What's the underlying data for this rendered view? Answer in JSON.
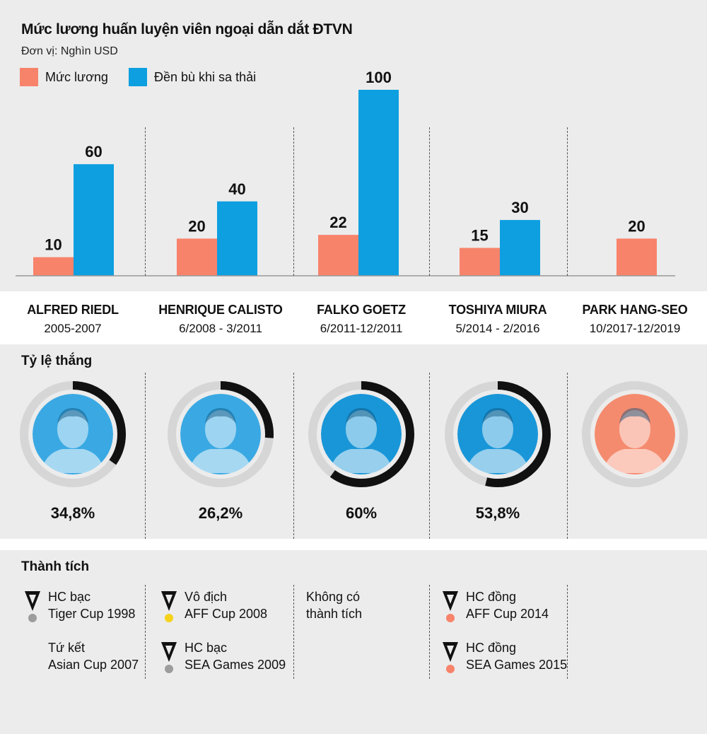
{
  "title": "Mức lương huấn luyện viên ngoại dẫn dắt ĐTVN",
  "unit": "Đơn vị: Nghìn USD",
  "colors": {
    "salary": "#f8836b",
    "compensation": "#0d9fe0",
    "ring_bg": "#d6d6d6",
    "ring_fg": "#111111",
    "gold": "#f6d21b",
    "silver": "#9c9c9c",
    "bronze": "#f8836b"
  },
  "legend": [
    {
      "label": "Mức lương",
      "color": "#f8836b"
    },
    {
      "label": "Đền bù khi sa thải",
      "color": "#0d9fe0"
    }
  ],
  "chart_data": {
    "type": "bar",
    "title": "Mức lương huấn luyện viên ngoại dẫn dắt ĐTVN",
    "subtitle": "Đơn vị: Nghìn USD",
    "categories": [
      "ALFRED RIEDL",
      "HENRIQUE CALISTO",
      "FALKO GOETZ",
      "TOSHIYA MIURA",
      "PARK HANG-SEO"
    ],
    "series": [
      {
        "name": "Mức lương",
        "values": [
          10,
          20,
          22,
          15,
          20
        ]
      },
      {
        "name": "Đền bù khi sa thải",
        "values": [
          60,
          40,
          100,
          30,
          null
        ]
      }
    ],
    "ylim": [
      0,
      100
    ],
    "grid": false,
    "legend_position": "top-left"
  },
  "coaches": [
    {
      "name": "ALFRED RIEDL",
      "period": "2005-2007",
      "win_rate": 34.8,
      "win_label": "34,8%",
      "photo_icon": "coach-photo-icon",
      "photo_tint": "#3aa9e3"
    },
    {
      "name": "HENRIQUE CALISTO",
      "period": "6/2008 - 3/2011",
      "win_rate": 26.2,
      "win_label": "26,2%",
      "photo_icon": "coach-photo-icon",
      "photo_tint": "#3aa9e3"
    },
    {
      "name": "FALKO GOETZ",
      "period": "6/2011-12/2011",
      "win_rate": 60,
      "win_label": "60%",
      "photo_icon": "coach-photo-icon",
      "photo_tint": "#1996d8"
    },
    {
      "name": "TOSHIYA MIURA",
      "period": "5/2014 - 2/2016",
      "win_rate": 53.8,
      "win_label": "53,8%",
      "photo_icon": "coach-photo-icon",
      "photo_tint": "#1996d8"
    },
    {
      "name": "PARK HANG-SEO",
      "period": "10/2017-12/2019",
      "win_rate": null,
      "win_label": "",
      "photo_icon": "coach-photo-icon",
      "photo_tint": "#f58b6e"
    }
  ],
  "win_section_title": "Tỷ lệ thắng",
  "ach_section_title": "Thành tích",
  "achievements": [
    [
      {
        "lines": [
          "HC bạc",
          "Tiger Cup 1998"
        ],
        "medal": "silver"
      },
      {
        "lines": [
          "Tứ kết",
          "Asian Cup 2007"
        ],
        "medal": null
      }
    ],
    [
      {
        "lines": [
          "Vô địch",
          "AFF Cup 2008"
        ],
        "medal": "gold"
      },
      {
        "lines": [
          "HC bạc",
          "SEA Games 2009"
        ],
        "medal": "silver"
      }
    ],
    [
      {
        "lines": [
          "Không có",
          "thành tích"
        ],
        "medal": null
      }
    ],
    [
      {
        "lines": [
          "HC đồng",
          "AFF Cup 2014"
        ],
        "medal": "bronze"
      },
      {
        "lines": [
          "HC đồng",
          "SEA Games 2015"
        ],
        "medal": "bronze"
      }
    ],
    []
  ]
}
